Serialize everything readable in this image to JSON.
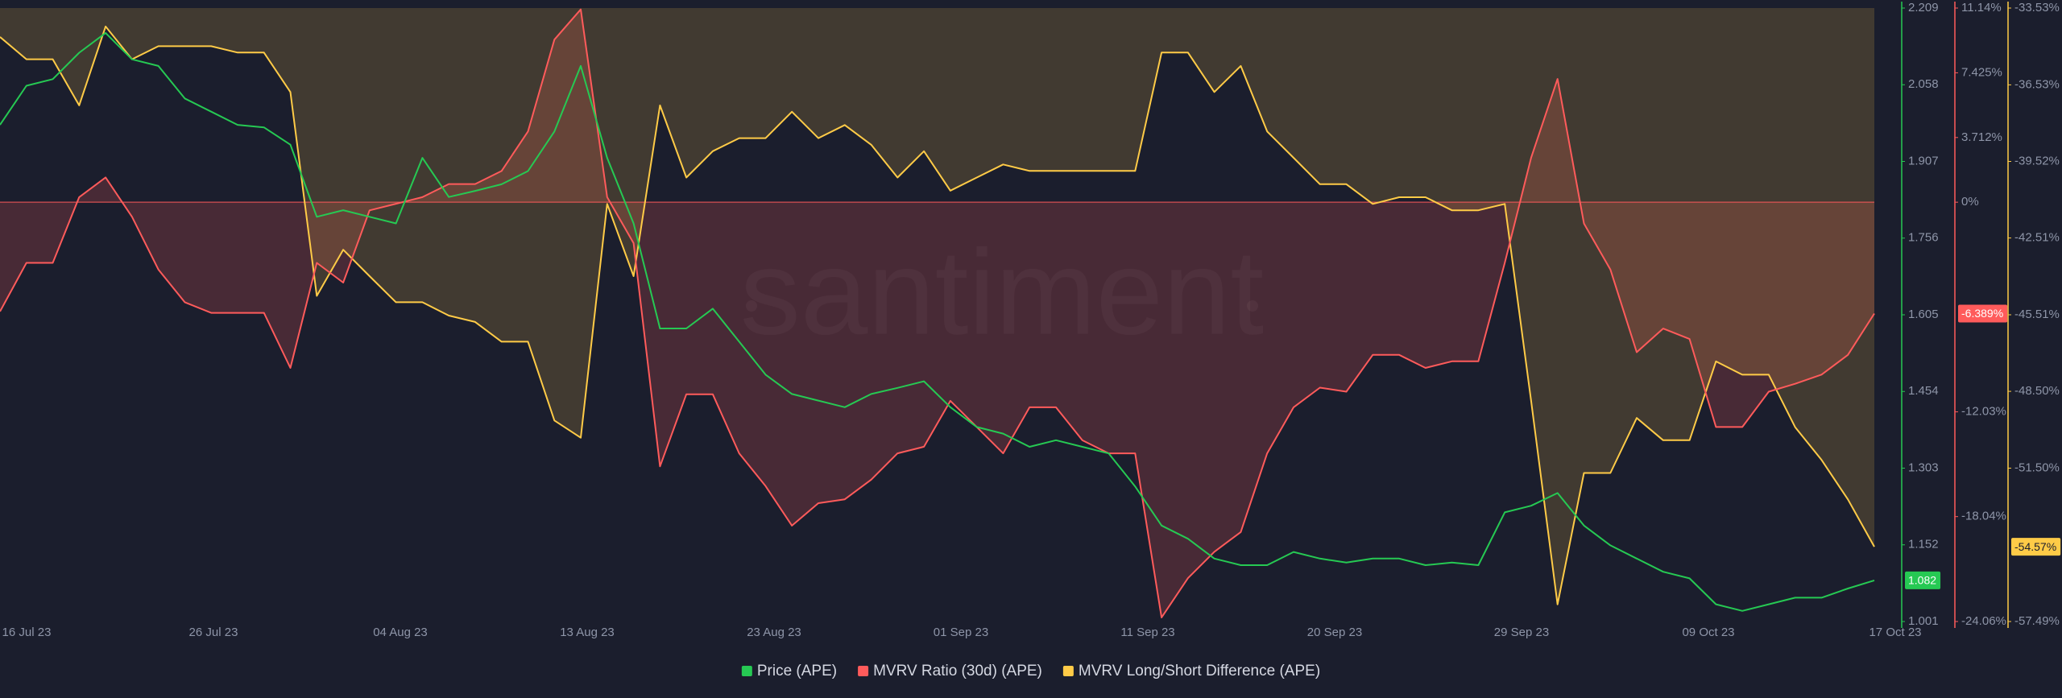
{
  "chart_data": {
    "type": "line",
    "watermark": "santiment",
    "x_tick_labels": [
      "16 Jul 23",
      "26 Jul 23",
      "04 Aug 23",
      "13 Aug 23",
      "23 Aug 23",
      "01 Sep 23",
      "11 Sep 23",
      "20 Sep 23",
      "29 Sep 23",
      "09 Oct 23",
      "17 Oct 23"
    ],
    "ylim": [
      1.001,
      2.209
    ],
    "yticks": [
      2.209,
      2.058,
      1.907,
      1.756,
      1.605,
      1.454,
      1.303,
      1.152,
      1.001
    ],
    "y2lim": [
      -24.06,
      11.14
    ],
    "y2ticks": [
      {
        "value": 11.14,
        "label": "11.14%"
      },
      {
        "value": 7.425,
        "label": "7.425%"
      },
      {
        "value": 3.712,
        "label": "3.712%"
      },
      {
        "value": 0,
        "label": "0%"
      },
      {
        "value": -12.03,
        "label": "-12.03%"
      },
      {
        "value": -18.04,
        "label": "-18.04%"
      },
      {
        "value": -24.06,
        "label": "-24.06%"
      }
    ],
    "y3lim": [
      -57.49,
      -33.53
    ],
    "y3ticks": [
      {
        "value": -33.53,
        "label": "-33.53%"
      },
      {
        "value": -36.53,
        "label": "-36.53%"
      },
      {
        "value": -39.52,
        "label": "-39.52%"
      },
      {
        "value": -42.51,
        "label": "-42.51%"
      },
      {
        "value": -45.51,
        "label": "-45.51%"
      },
      {
        "value": -48.5,
        "label": "-48.50%"
      },
      {
        "value": -51.5,
        "label": "-51.50%"
      },
      {
        "value": -57.49,
        "label": "-57.49%"
      }
    ],
    "grid": false,
    "series": [
      {
        "name": "Price (APE)",
        "color": "#26c953",
        "axis": "y",
        "current_label": "1.082",
        "values": [
          1.979,
          2.056,
          2.069,
          2.121,
          2.16,
          2.108,
          2.095,
          2.031,
          2.005,
          1.979,
          1.974,
          1.94,
          1.798,
          1.811,
          1.798,
          1.785,
          1.914,
          1.837,
          1.849,
          1.862,
          1.888,
          1.966,
          2.095,
          1.914,
          1.785,
          1.578,
          1.578,
          1.617,
          1.552,
          1.487,
          1.449,
          1.436,
          1.423,
          1.449,
          1.461,
          1.474,
          1.423,
          1.384,
          1.371,
          1.345,
          1.358,
          1.345,
          1.332,
          1.267,
          1.19,
          1.164,
          1.125,
          1.112,
          1.112,
          1.138,
          1.125,
          1.117,
          1.125,
          1.125,
          1.112,
          1.117,
          1.112,
          1.216,
          1.229,
          1.254,
          1.19,
          1.151,
          1.125,
          1.099,
          1.086,
          1.035,
          1.022,
          1.035,
          1.048,
          1.048,
          1.066,
          1.082
        ]
      },
      {
        "name": "MVRV Ratio (30d) (APE)",
        "color": "#ff5b5b",
        "axis": "y2",
        "current_label": "-6.389%",
        "values": [
          -6.27,
          -3.48,
          -3.48,
          0.29,
          1.42,
          -0.84,
          -3.86,
          -5.74,
          -6.35,
          -6.35,
          -6.35,
          -9.51,
          -3.48,
          -4.61,
          -0.47,
          -0.09,
          0.29,
          1.04,
          1.04,
          1.79,
          4.06,
          9.33,
          11.06,
          0.29,
          -2.35,
          -15.16,
          -11.02,
          -11.02,
          -14.41,
          -16.29,
          -18.56,
          -17.27,
          -17.05,
          -15.92,
          -14.41,
          -14.03,
          -11.4,
          -12.9,
          -14.41,
          -11.77,
          -11.77,
          -13.66,
          -14.41,
          -14.41,
          -23.83,
          -21.57,
          -20.06,
          -18.93,
          -14.41,
          -11.77,
          -10.64,
          -10.87,
          -8.76,
          -8.76,
          -9.51,
          -9.13,
          -9.13,
          -3.48,
          2.55,
          7.07,
          -1.22,
          -3.86,
          -8.61,
          -7.25,
          -7.85,
          -12.9,
          -12.9,
          -10.87,
          -10.42,
          -9.89,
          -8.76,
          -6.389
        ]
      },
      {
        "name": "MVRV Long/Short Difference (APE)",
        "color": "#ffcb47",
        "axis": "y3",
        "current_label": "-54.57%",
        "values": [
          -34.66,
          -35.53,
          -35.53,
          -37.33,
          -34.25,
          -35.53,
          -35.02,
          -35.02,
          -35.02,
          -35.27,
          -35.27,
          -36.81,
          -44.77,
          -42.97,
          -44.0,
          -45.02,
          -45.02,
          -45.54,
          -45.79,
          -46.56,
          -46.56,
          -49.64,
          -50.31,
          -41.18,
          -44.0,
          -37.33,
          -40.15,
          -39.12,
          -38.61,
          -38.61,
          -37.58,
          -38.61,
          -38.1,
          -38.87,
          -40.15,
          -39.12,
          -40.66,
          -40.15,
          -39.64,
          -39.89,
          -39.89,
          -39.89,
          -39.89,
          -39.89,
          -35.27,
          -35.27,
          -36.81,
          -35.79,
          -38.35,
          -39.38,
          -40.41,
          -40.41,
          -41.18,
          -40.92,
          -40.92,
          -41.43,
          -41.43,
          -41.18,
          -48.87,
          -56.82,
          -51.69,
          -51.69,
          -49.54,
          -50.41,
          -50.41,
          -47.33,
          -47.85,
          -47.85,
          -49.9,
          -51.18,
          -52.72,
          -54.57
        ]
      }
    ]
  }
}
